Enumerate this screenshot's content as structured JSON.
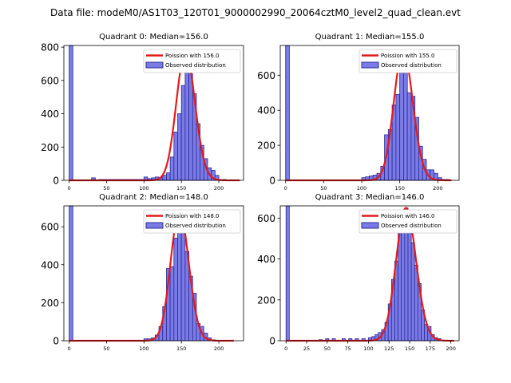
{
  "figure_title": "Data file: modeM0/AS1T03_120T01_9000002990_20064cztM0_level2_quad_clean.evt",
  "colors": {
    "bar_fill": "#7b7be6",
    "bar_edge": "#2a2a9a",
    "poisson_line": "#e31a1c",
    "axis": "#000000"
  },
  "chart_data": [
    {
      "type": "bar",
      "title": "Quadrant 0: Median=156.0",
      "median": 156.0,
      "xlim": [
        -7,
        233
      ],
      "ylim": [
        0,
        810
      ],
      "x_ticks": [
        0,
        50,
        100,
        150,
        200
      ],
      "y_ticks": [
        0,
        200,
        400,
        600,
        800
      ],
      "legend": {
        "placement": "top-right",
        "line_label": "Poission with 156.0",
        "bar_label": "Observed distribution"
      },
      "bin_width": 5,
      "bins": [
        [
          0,
          810
        ],
        [
          30,
          15
        ],
        [
          40,
          5
        ],
        [
          45,
          5
        ],
        [
          50,
          5
        ],
        [
          55,
          5
        ],
        [
          60,
          5
        ],
        [
          65,
          5
        ],
        [
          70,
          5
        ],
        [
          75,
          5
        ],
        [
          80,
          5
        ],
        [
          85,
          5
        ],
        [
          90,
          5
        ],
        [
          95,
          5
        ],
        [
          100,
          20
        ],
        [
          105,
          10
        ],
        [
          110,
          15
        ],
        [
          115,
          20
        ],
        [
          120,
          15
        ],
        [
          125,
          30
        ],
        [
          130,
          45
        ],
        [
          135,
          140
        ],
        [
          140,
          290
        ],
        [
          145,
          400
        ],
        [
          150,
          570
        ],
        [
          155,
          720
        ],
        [
          160,
          640
        ],
        [
          165,
          520
        ],
        [
          170,
          340
        ],
        [
          175,
          210
        ],
        [
          180,
          130
        ],
        [
          185,
          75
        ],
        [
          190,
          60
        ],
        [
          195,
          30
        ],
        [
          200,
          5
        ],
        [
          205,
          5
        ]
      ],
      "poisson_mean": 156.0,
      "poisson_peak": 770,
      "poisson_x": [
        0,
        228
      ]
    },
    {
      "type": "bar",
      "title": "Quadrant 1: Median=155.0",
      "median": 155.0,
      "xlim": [
        -7,
        228
      ],
      "ylim": [
        0,
        770
      ],
      "x_ticks": [
        0,
        50,
        100,
        150,
        200
      ],
      "y_ticks": [
        0,
        200,
        400,
        600
      ],
      "legend": {
        "placement": "top-right",
        "line_label": "Poission with 155.0",
        "bar_label": "Observed distribution"
      },
      "bin_width": 5,
      "bins": [
        [
          0,
          770
        ],
        [
          100,
          15
        ],
        [
          105,
          20
        ],
        [
          110,
          25
        ],
        [
          115,
          30
        ],
        [
          120,
          40
        ],
        [
          125,
          80
        ],
        [
          130,
          260
        ],
        [
          135,
          290
        ],
        [
          140,
          430
        ],
        [
          145,
          490
        ],
        [
          150,
          700
        ],
        [
          155,
          720
        ],
        [
          160,
          500
        ],
        [
          165,
          480
        ],
        [
          170,
          360
        ],
        [
          175,
          195
        ],
        [
          180,
          120
        ],
        [
          185,
          60
        ],
        [
          190,
          60
        ],
        [
          195,
          40
        ],
        [
          200,
          15
        ],
        [
          205,
          5
        ],
        [
          210,
          5
        ]
      ],
      "poisson_mean": 155.0,
      "poisson_peak": 740,
      "poisson_x": [
        0,
        218
      ]
    },
    {
      "type": "bar",
      "title": "Quadrant 2: Median=148.0",
      "median": 148.0,
      "xlim": [
        -7,
        233
      ],
      "ylim": [
        0,
        710
      ],
      "x_ticks": [
        0,
        50,
        100,
        150,
        200
      ],
      "y_ticks": [
        0,
        200,
        400,
        600
      ],
      "legend": {
        "placement": "top-right",
        "line_label": "Poission with 148.0",
        "bar_label": "Observed distribution"
      },
      "bin_width": 5,
      "bins": [
        [
          0,
          710
        ],
        [
          100,
          10
        ],
        [
          105,
          10
        ],
        [
          110,
          15
        ],
        [
          115,
          30
        ],
        [
          120,
          75
        ],
        [
          125,
          180
        ],
        [
          130,
          380
        ],
        [
          135,
          390
        ],
        [
          140,
          540
        ],
        [
          145,
          660
        ],
        [
          150,
          640
        ],
        [
          155,
          470
        ],
        [
          160,
          340
        ],
        [
          165,
          250
        ],
        [
          170,
          90
        ],
        [
          175,
          75
        ],
        [
          180,
          40
        ],
        [
          185,
          15
        ],
        [
          190,
          5
        ]
      ],
      "poisson_mean": 148.0,
      "poisson_peak": 680,
      "poisson_x": [
        0,
        220
      ]
    },
    {
      "type": "bar",
      "title": "Quadrant 3: Median=146.0",
      "median": 146.0,
      "xlim": [
        -7,
        210
      ],
      "ylim": [
        0,
        660
      ],
      "x_ticks": [
        0,
        25,
        50,
        75,
        100,
        125,
        150,
        175,
        200
      ],
      "y_ticks": [
        0,
        200,
        400,
        600
      ],
      "legend": {
        "placement": "top-right",
        "line_label": "Poission with 146.0",
        "bar_label": "Observed distribution"
      },
      "bin_width": 4,
      "bins": [
        [
          0,
          660
        ],
        [
          40,
          5
        ],
        [
          48,
          10
        ],
        [
          56,
          10
        ],
        [
          68,
          10
        ],
        [
          76,
          10
        ],
        [
          84,
          10
        ],
        [
          92,
          10
        ],
        [
          100,
          15
        ],
        [
          104,
          20
        ],
        [
          108,
          30
        ],
        [
          112,
          40
        ],
        [
          116,
          55
        ],
        [
          120,
          90
        ],
        [
          124,
          180
        ],
        [
          128,
          300
        ],
        [
          132,
          390
        ],
        [
          136,
          530
        ],
        [
          140,
          600
        ],
        [
          144,
          650
        ],
        [
          148,
          560
        ],
        [
          152,
          480
        ],
        [
          156,
          370
        ],
        [
          160,
          280
        ],
        [
          164,
          150
        ],
        [
          168,
          80
        ],
        [
          172,
          70
        ],
        [
          176,
          30
        ],
        [
          180,
          15
        ],
        [
          184,
          10
        ]
      ],
      "poisson_mean": 146.0,
      "poisson_peak": 650,
      "poisson_x": [
        0,
        204
      ]
    }
  ]
}
